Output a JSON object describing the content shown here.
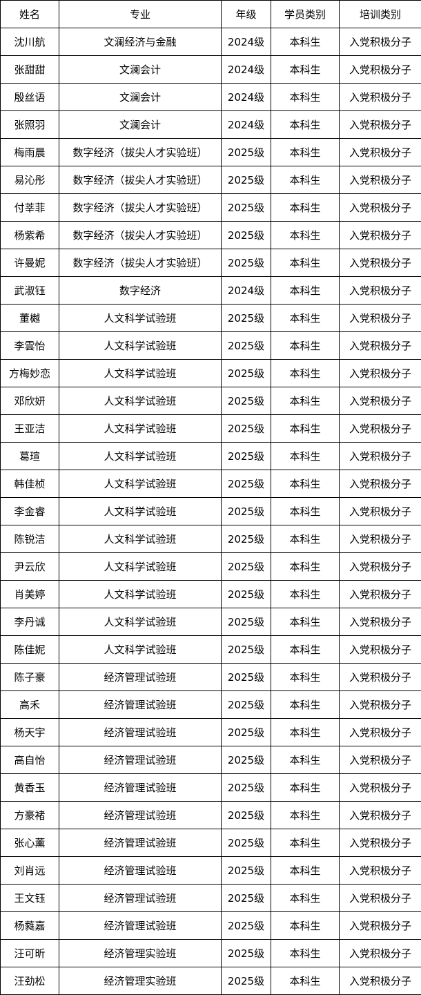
{
  "headers": [
    "姓名",
    "专业",
    "年级",
    "学员类别",
    "培训类别"
  ],
  "rows": [
    [
      "沈川航",
      "文澜经济与金融",
      "2024级",
      "本科生",
      "入党积极分子"
    ],
    [
      "张甜甜",
      "文澜会计",
      "2024级",
      "本科生",
      "入党积极分子"
    ],
    [
      "殷丝语",
      "文澜会计",
      "2024级",
      "本科生",
      "入党积极分子"
    ],
    [
      "张照羽",
      "文澜会计",
      "2024级",
      "本科生",
      "入党积极分子"
    ],
    [
      "梅雨晨",
      "数字经济（拔尖人才实验班）",
      "2025级",
      "本科生",
      "入党积极分子"
    ],
    [
      "易沁彤",
      "数字经济（拔尖人才实验班）",
      "2025级",
      "本科生",
      "入党积极分子"
    ],
    [
      "付莘菲",
      "数字经济（拔尖人才实验班）",
      "2025级",
      "本科生",
      "入党积极分子"
    ],
    [
      "杨紫希",
      "数字经济（拔尖人才实验班）",
      "2025级",
      "本科生",
      "入党积极分子"
    ],
    [
      "许曼妮",
      "数字经济（拔尖人才实验班）",
      "2025级",
      "本科生",
      "入党积极分子"
    ],
    [
      "武淑钰",
      "数字经济",
      "2024级",
      "本科生",
      "入党积极分子"
    ],
    [
      "董樾",
      "人文科学试验班",
      "2025级",
      "本科生",
      "入党积极分子"
    ],
    [
      "李雲怡",
      "人文科学试验班",
      "2025级",
      "本科生",
      "入党积极分子"
    ],
    [
      "方梅妙恋",
      "人文科学试验班",
      "2025级",
      "本科生",
      "入党积极分子"
    ],
    [
      "邓欣妍",
      "人文科学试验班",
      "2025级",
      "本科生",
      "入党积极分子"
    ],
    [
      "王亚洁",
      "人文科学试验班",
      "2025级",
      "本科生",
      "入党积极分子"
    ],
    [
      "葛瑄",
      "人文科学试验班",
      "2025级",
      "本科生",
      "入党积极分子"
    ],
    [
      "韩佳桢",
      "人文科学试验班",
      "2025级",
      "本科生",
      "入党积极分子"
    ],
    [
      "李金睿",
      "人文科学试验班",
      "2025级",
      "本科生",
      "入党积极分子"
    ],
    [
      "陈锐洁",
      "人文科学试验班",
      "2025级",
      "本科生",
      "入党积极分子"
    ],
    [
      "尹云欣",
      "人文科学试验班",
      "2025级",
      "本科生",
      "入党积极分子"
    ],
    [
      "肖美婷",
      "人文科学试验班",
      "2025级",
      "本科生",
      "入党积极分子"
    ],
    [
      "李丹诚",
      "人文科学试验班",
      "2025级",
      "本科生",
      "入党积极分子"
    ],
    [
      "陈佳妮",
      "人文科学试验班",
      "2025级",
      "本科生",
      "入党积极分子"
    ],
    [
      "陈子豪",
      "经济管理试验班",
      "2025级",
      "本科生",
      "入党积极分子"
    ],
    [
      "高禾",
      "经济管理试验班",
      "2025级",
      "本科生",
      "入党积极分子"
    ],
    [
      "杨天宇",
      "经济管理试验班",
      "2025级",
      "本科生",
      "入党积极分子"
    ],
    [
      "高自怡",
      "经济管理试验班",
      "2025级",
      "本科生",
      "入党积极分子"
    ],
    [
      "黄香玉",
      "经济管理试验班",
      "2025级",
      "本科生",
      "入党积极分子"
    ],
    [
      "方豪褚",
      "经济管理试验班",
      "2025级",
      "本科生",
      "入党积极分子"
    ],
    [
      "张心薰",
      "经济管理试验班",
      "2025级",
      "本科生",
      "入党积极分子"
    ],
    [
      "刘肖远",
      "经济管理试验班",
      "2025级",
      "本科生",
      "入党积极分子"
    ],
    [
      "王文钰",
      "经济管理试验班",
      "2025级",
      "本科生",
      "入党积极分子"
    ],
    [
      "杨蕤嘉",
      "经济管理试验班",
      "2025级",
      "本科生",
      "入党积极分子"
    ],
    [
      "汪可昕",
      "经济管理实验班",
      "2025级",
      "本科生",
      "入党积极分子"
    ],
    [
      "汪劲松",
      "经济管理实验班",
      "2025级",
      "本科生",
      "入党积极分子"
    ]
  ]
}
